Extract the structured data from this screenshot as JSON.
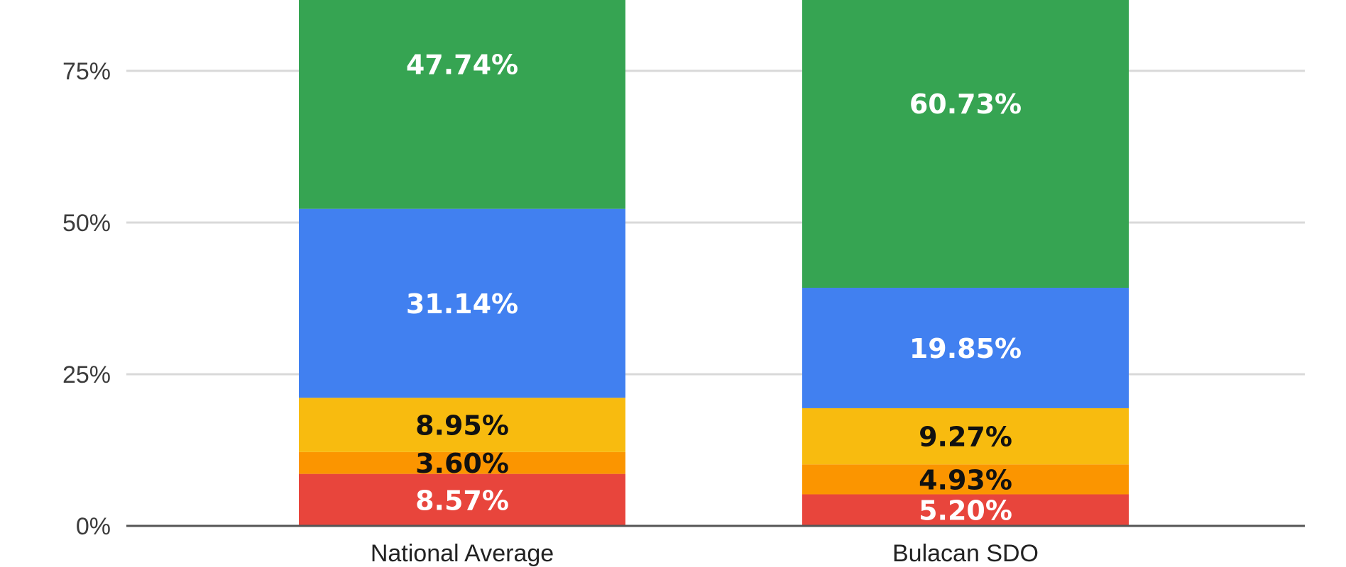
{
  "chart_data": {
    "type": "bar",
    "stacked": true,
    "categories": [
      "National Average",
      "Bulacan SDO"
    ],
    "series": [
      {
        "values": [
          8.57,
          5.2
        ],
        "labels": [
          "8.57%",
          "5.20%"
        ],
        "color": "#e8453c",
        "label_color": "#ffffff"
      },
      {
        "values": [
          3.6,
          4.93
        ],
        "labels": [
          "3.60%",
          "4.93%"
        ],
        "color": "#fb9500",
        "label_color": "#111111"
      },
      {
        "values": [
          8.95,
          9.27
        ],
        "labels": [
          "8.95%",
          "9.27%"
        ],
        "color": "#f8bb0f",
        "label_color": "#111111"
      },
      {
        "values": [
          31.14,
          19.85
        ],
        "labels": [
          "31.14%",
          "19.85%"
        ],
        "color": "#4180f0",
        "label_color": "#ffffff"
      },
      {
        "values": [
          47.74,
          60.73
        ],
        "labels": [
          "47.74%",
          "60.73%"
        ],
        "color": "#36a452",
        "label_color": "#ffffff"
      }
    ],
    "y_ticks": [
      {
        "value": 0,
        "label": "0%"
      },
      {
        "value": 25,
        "label": "25%"
      },
      {
        "value": 50,
        "label": "50%"
      },
      {
        "value": 75,
        "label": "75%"
      }
    ],
    "ylim": [
      0,
      100
    ],
    "grid": true,
    "title": "",
    "xlabel": "",
    "ylabel": ""
  }
}
